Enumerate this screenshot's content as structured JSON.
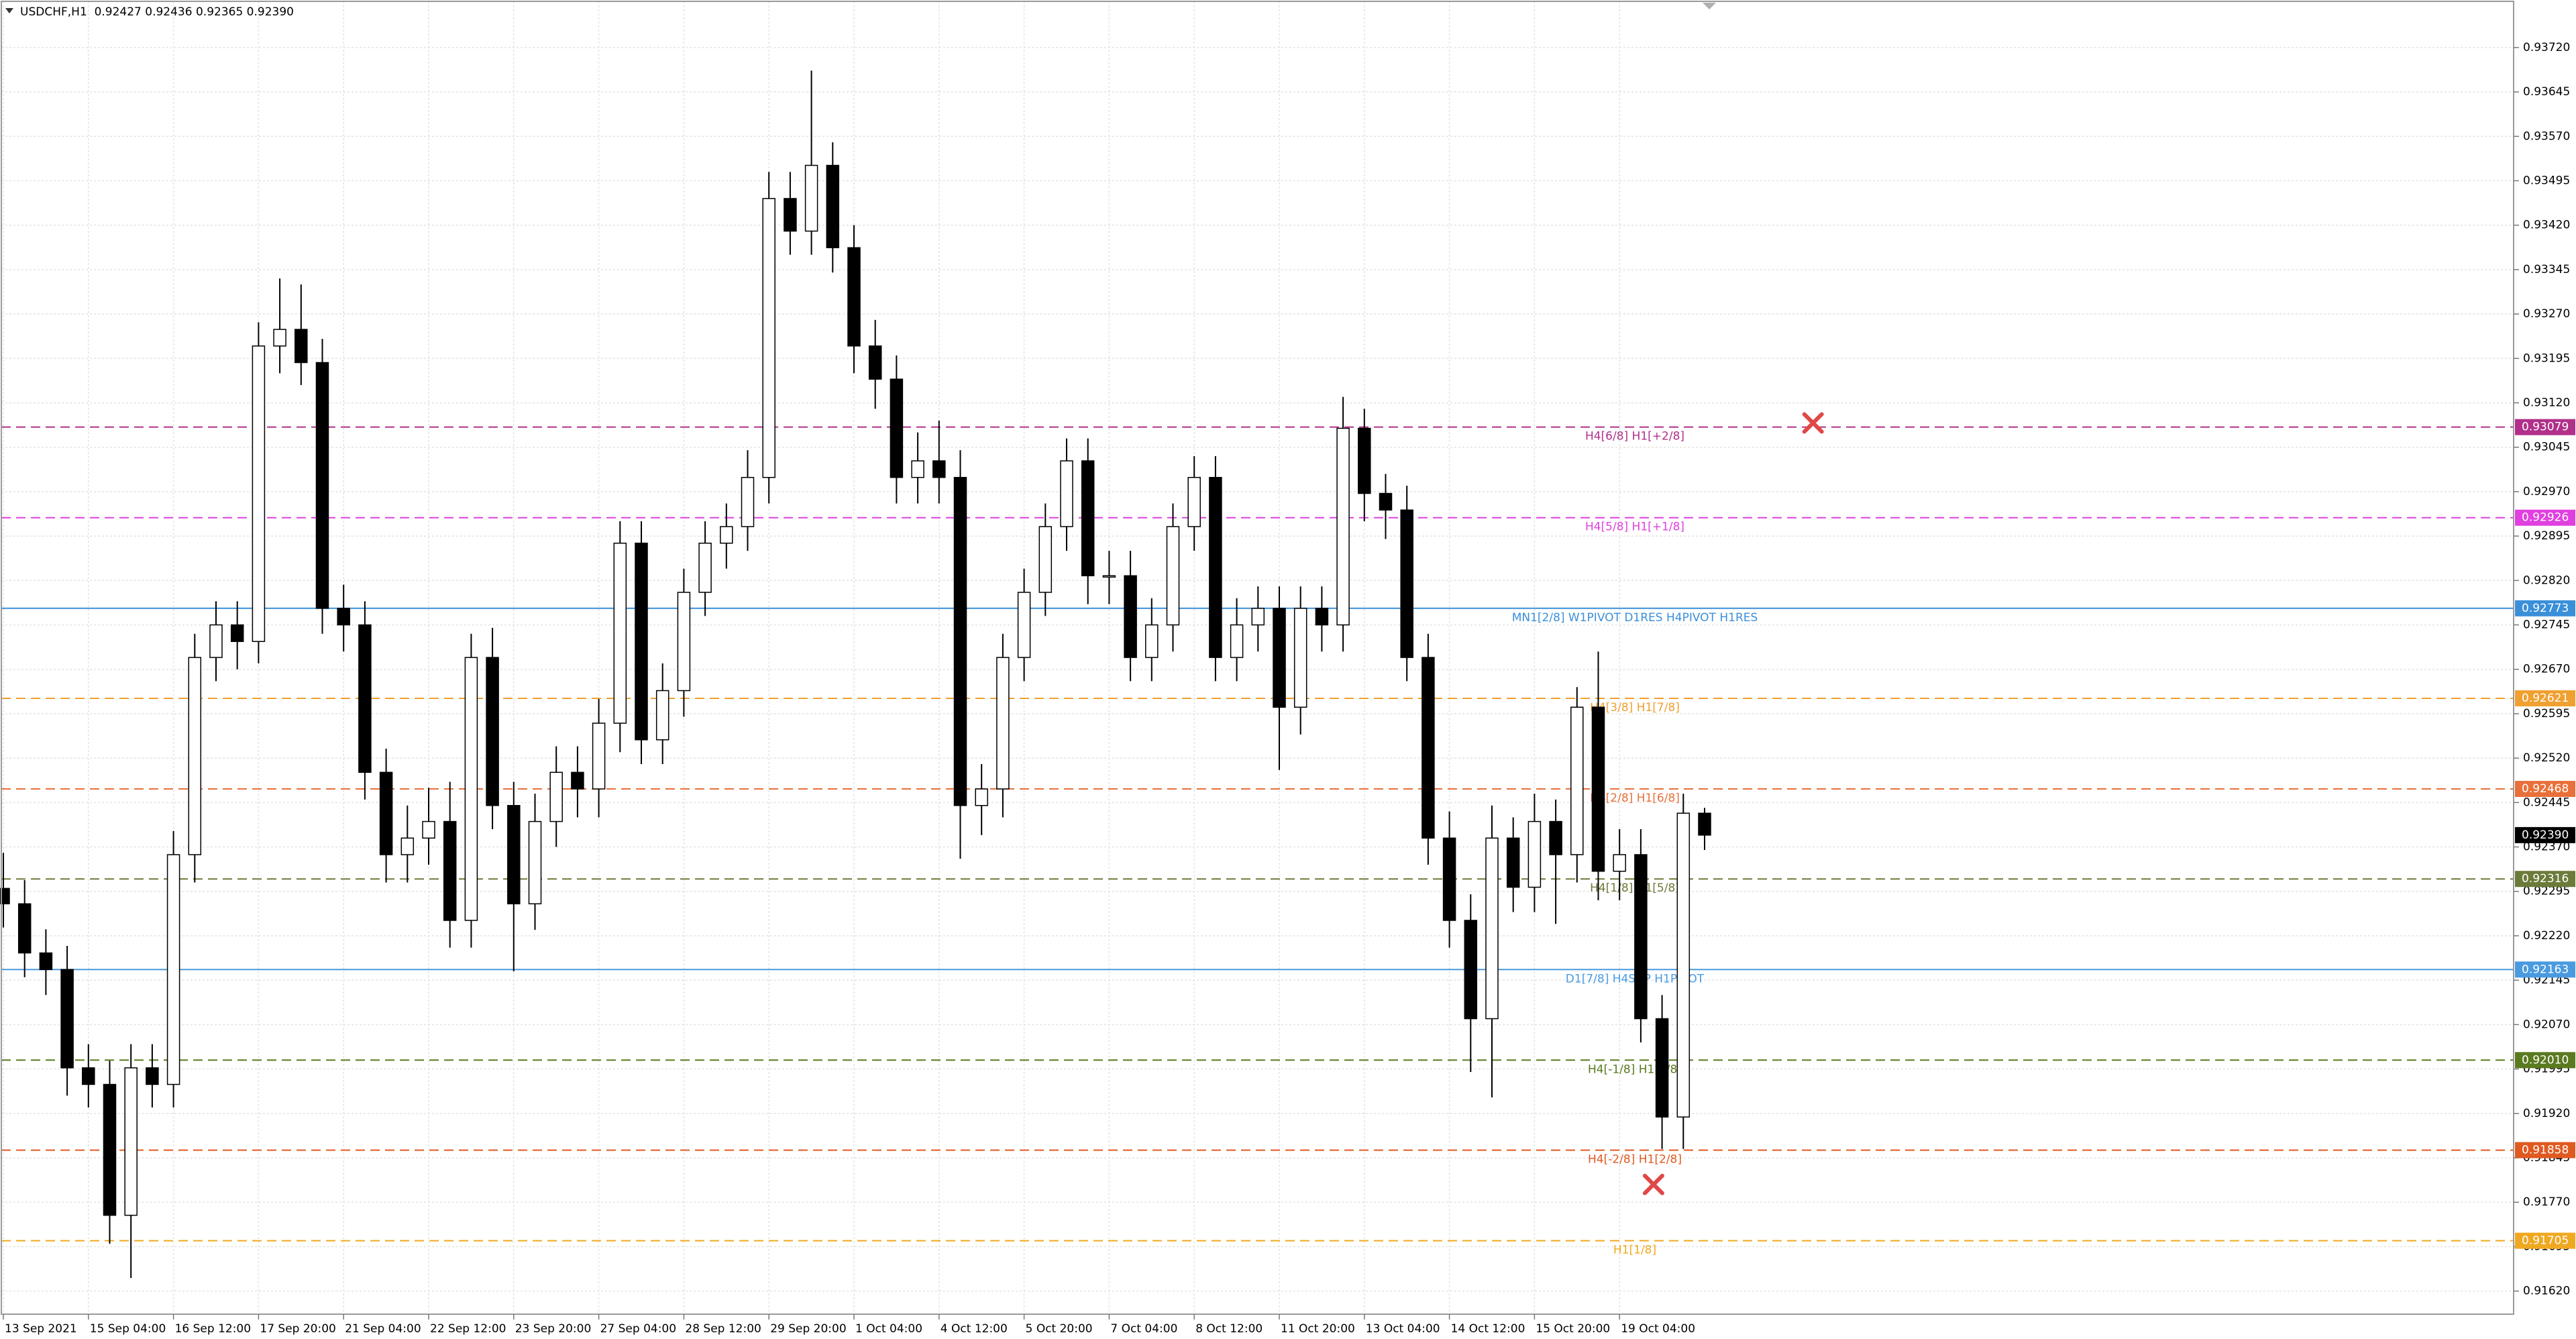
{
  "chart_data": {
    "type": "candlestick",
    "title": "USDCHF,H1  0.92427 0.92436 0.92365 0.92390",
    "categories": [
      "13 Sep 2021",
      null,
      null,
      null,
      "15 Sep 04:00",
      null,
      null,
      null,
      "16 Sep 12:00",
      null,
      null,
      null,
      "17 Sep 20:00",
      null,
      null,
      null,
      "21 Sep 04:00",
      null,
      null,
      null,
      "22 Sep 12:00",
      null,
      null,
      null,
      "23 Sep 20:00",
      null,
      null,
      null,
      "27 Sep 04:00",
      null,
      null,
      null,
      "28 Sep 12:00",
      null,
      null,
      null,
      "29 Sep 20:00",
      null,
      null,
      null,
      "1 Oct 04:00",
      null,
      null,
      null,
      "4 Oct 12:00",
      null,
      null,
      null,
      "5 Oct 20:00",
      null,
      null,
      null,
      "7 Oct 04:00",
      null,
      null,
      null,
      "8 Oct 12:00",
      null,
      null,
      null,
      "11 Oct 20:00",
      null,
      null,
      null,
      "13 Oct 04:00",
      null,
      null,
      null,
      "14 Oct 12:00",
      null,
      null,
      null,
      "15 Oct 20:00",
      null,
      null,
      null,
      "19 Oct 04:00",
      null,
      null,
      null,
      null
    ],
    "open": [
      0.923,
      0.92274,
      0.92191,
      0.92163,
      0.91997,
      0.91969,
      0.91748,
      0.91997,
      0.91969,
      0.92357,
      0.9269,
      0.92745,
      0.92717,
      0.93216,
      0.93244,
      0.93188,
      0.92773,
      0.92745,
      0.92496,
      0.92357,
      0.92385,
      0.92413,
      0.92246,
      0.9269,
      0.9244,
      0.92274,
      0.92413,
      0.92496,
      0.92468,
      0.92579,
      0.92883,
      0.92551,
      0.92634,
      0.928,
      0.92883,
      0.92911,
      0.92994,
      0.93465,
      0.9341,
      0.93521,
      0.93382,
      0.93216,
      0.9316,
      0.92994,
      0.93022,
      0.92994,
      0.9244,
      0.92468,
      0.9269,
      0.928,
      0.92911,
      0.93022,
      0.92828,
      0.92828,
      0.9269,
      0.92745,
      0.92911,
      0.92994,
      0.9269,
      0.92745,
      0.92773,
      0.92606,
      0.92773,
      0.92745,
      0.93077,
      0.92967,
      0.92939,
      0.9269,
      0.92385,
      0.92246,
      0.9208,
      0.92385,
      0.92302,
      0.92413,
      0.92357,
      0.92606,
      0.92329,
      0.92357,
      0.9208,
      0.91914,
      0.92427
    ],
    "high": [
      0.9236,
      0.92314,
      0.92231,
      0.92203,
      0.92037,
      0.92009,
      0.92037,
      0.92037,
      0.92397,
      0.9273,
      0.92785,
      0.92785,
      0.93256,
      0.9333,
      0.9332,
      0.93228,
      0.92813,
      0.92785,
      0.92536,
      0.9244,
      0.9247,
      0.9248,
      0.9273,
      0.9274,
      0.9248,
      0.9246,
      0.9254,
      0.9254,
      0.9262,
      0.9292,
      0.9292,
      0.9268,
      0.9284,
      0.9292,
      0.9295,
      0.9304,
      0.9351,
      0.9351,
      0.93681,
      0.9356,
      0.9342,
      0.9326,
      0.932,
      0.9307,
      0.9309,
      0.9304,
      0.9251,
      0.9273,
      0.9284,
      0.9295,
      0.9306,
      0.9306,
      0.9287,
      0.9287,
      0.9279,
      0.9295,
      0.9303,
      0.9303,
      0.9279,
      0.9281,
      0.9281,
      0.9281,
      0.9281,
      0.9313,
      0.9311,
      0.93,
      0.9298,
      0.9273,
      0.9243,
      0.9229,
      0.9244,
      0.9242,
      0.9246,
      0.9245,
      0.9264,
      0.927,
      0.924,
      0.924,
      0.9212,
      0.9246,
      0.92436
    ],
    "low": [
      0.92234,
      0.9215,
      0.9212,
      0.9195,
      0.9193,
      0.917,
      0.91642,
      0.9193,
      0.9193,
      0.9231,
      0.9265,
      0.9267,
      0.9268,
      0.9317,
      0.9315,
      0.9273,
      0.927,
      0.9245,
      0.9231,
      0.9231,
      0.9234,
      0.922,
      0.922,
      0.924,
      0.9216,
      0.9223,
      0.9237,
      0.9242,
      0.9242,
      0.9253,
      0.9251,
      0.9251,
      0.9259,
      0.9276,
      0.9284,
      0.9287,
      0.9295,
      0.9337,
      0.9337,
      0.9334,
      0.9317,
      0.9311,
      0.9295,
      0.9295,
      0.9295,
      0.9235,
      0.9239,
      0.9242,
      0.9265,
      0.9276,
      0.9287,
      0.9278,
      0.9278,
      0.9265,
      0.9265,
      0.927,
      0.9287,
      0.9265,
      0.9265,
      0.927,
      0.925,
      0.9256,
      0.927,
      0.927,
      0.9292,
      0.9289,
      0.9265,
      0.9234,
      0.922,
      0.9199,
      0.91947,
      0.9226,
      0.9226,
      0.9224,
      0.9231,
      0.9228,
      0.9228,
      0.9204,
      0.9186,
      0.9186,
      0.92365
    ],
    "close": [
      0.92274,
      0.92191,
      0.92163,
      0.91997,
      0.91969,
      0.91748,
      0.91997,
      0.91969,
      0.92357,
      0.9269,
      0.92745,
      0.92717,
      0.93216,
      0.93244,
      0.93188,
      0.92773,
      0.92745,
      0.92496,
      0.92357,
      0.92385,
      0.92413,
      0.92246,
      0.9269,
      0.9244,
      0.92274,
      0.92413,
      0.92496,
      0.92468,
      0.92579,
      0.92883,
      0.92551,
      0.92634,
      0.928,
      0.92883,
      0.92911,
      0.92994,
      0.93465,
      0.9341,
      0.93521,
      0.93382,
      0.93216,
      0.9316,
      0.92994,
      0.93022,
      0.92994,
      0.9244,
      0.92468,
      0.9269,
      0.928,
      0.92911,
      0.93022,
      0.92828,
      0.92828,
      0.9269,
      0.92745,
      0.92911,
      0.92994,
      0.9269,
      0.92745,
      0.92773,
      0.92606,
      0.92773,
      0.92745,
      0.93077,
      0.92967,
      0.92939,
      0.9269,
      0.92385,
      0.92246,
      0.9208,
      0.92385,
      0.92302,
      0.92413,
      0.92357,
      0.92606,
      0.92329,
      0.92357,
      0.9208,
      0.91914,
      0.92427,
      0.9239
    ],
    "ylim": [
      0.91581,
      0.93798
    ],
    "yticks": [
      {
        "value": 0.9162,
        "label": "0.91620"
      },
      0.91695,
      {
        "value": 0.9177,
        "label": "0.91770"
      },
      0.91845,
      {
        "value": 0.9192,
        "label": "0.91920"
      },
      0.91995,
      {
        "value": 0.9207,
        "label": "0.92070"
      },
      0.92145,
      {
        "value": 0.9222,
        "label": "0.92220"
      },
      0.92295,
      {
        "value": 0.9237,
        "label": "0.92370"
      },
      0.92445,
      {
        "value": 0.9252,
        "label": "0.92520"
      },
      0.92595,
      {
        "value": 0.9267,
        "label": "0.92670"
      },
      0.92745,
      {
        "value": 0.9282,
        "label": "0.92820"
      },
      0.92895,
      {
        "value": 0.9297,
        "label": "0.92970"
      },
      0.93045,
      {
        "value": 0.9312,
        "label": "0.93120"
      },
      0.93195,
      {
        "value": 0.9327,
        "label": "0.93270"
      },
      0.93345,
      {
        "value": 0.9342,
        "label": "0.93420"
      },
      0.93495,
      {
        "value": 0.9357,
        "label": "0.93570"
      },
      0.93645,
      {
        "value": 0.9372,
        "label": "0.93720"
      }
    ],
    "grid": true,
    "bull_color": "#ffffff",
    "bear_color": "#000000",
    "wick_color": "#000000",
    "levels": [
      {
        "label": "H4[6/8] H1[+2/8]",
        "price": 0.93079,
        "color": "#b0308a",
        "style": "dashed"
      },
      {
        "label": "H4[5/8] H1[+1/8]",
        "price": 0.92926,
        "color": "#e040e0",
        "style": "dashed"
      },
      {
        "label": "MN1[2/8] W1PIVOT D1RES H4PIVOT H1RES",
        "price": 0.92773,
        "color": "#3a8fd9",
        "style": "solid"
      },
      {
        "label": "H4[3/8] H1[7/8]",
        "price": 0.92621,
        "color": "#f0a030",
        "style": "dashed"
      },
      {
        "label": "H4[2/8] H1[6/8]",
        "price": 0.92468,
        "color": "#e8703a",
        "style": "dashed"
      },
      {
        "label": "H4[1/8] H1[5/8]",
        "price": 0.92316,
        "color": "#6b7b3a",
        "style": "dashed"
      },
      {
        "label": "D1[7/8] H4SUP H1PIVOT",
        "price": 0.92163,
        "color": "#4a9ae0",
        "style": "solid"
      },
      {
        "label": "H4[-1/8] H1[3/8]",
        "price": {
          "value": 0.9201,
          "label": "0.92010"
        },
        "color": "#5a7a20",
        "style": "dashed"
      },
      {
        "label": "H4[-2/8] H1[2/8]",
        "price": 0.91858,
        "color": "#e05a20",
        "style": "dashed"
      },
      {
        "label": "H1[1/8]",
        "price": 0.91705,
        "color": "#f0a820",
        "style": "dashed"
      }
    ],
    "last_price": {
      "value": 0.9239,
      "label": "0.92390"
    },
    "last_price_color": "#000000",
    "markers": [
      {
        "x": 85.1,
        "y": 0.93086,
        "color": "#e04848"
      },
      {
        "x": 77.6,
        "y": 0.918,
        "color": "#e04848"
      }
    ]
  }
}
